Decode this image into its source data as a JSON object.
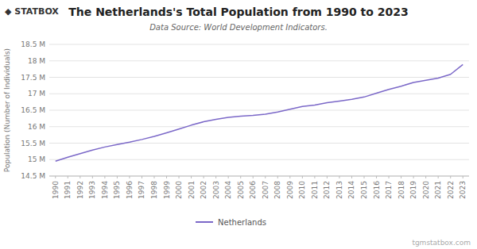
{
  "chart_data": {
    "type": "line",
    "title": "The Netherlands's Total Population from 1990 to 2023",
    "subtitle": "Data Source: World Development Indicators.",
    "ylabel": "Population (Number of Individuals)",
    "annotations": [
      "◆ STATBOX",
      "tgmstatbox.com"
    ],
    "x": [
      1990,
      1991,
      1992,
      1993,
      1994,
      1995,
      1996,
      1997,
      1998,
      1999,
      2000,
      2001,
      2002,
      2003,
      2004,
      2005,
      2006,
      2007,
      2008,
      2009,
      2010,
      2011,
      2012,
      2013,
      2014,
      2015,
      2016,
      2017,
      2018,
      2019,
      2020,
      2021,
      2022,
      2023
    ],
    "series": [
      {
        "name": "Netherlands",
        "color": "#7B68C8",
        "values": [
          14952000,
          15070000,
          15182000,
          15290000,
          15383000,
          15459000,
          15530000,
          15611000,
          15707000,
          15812000,
          15926000,
          16046000,
          16149000,
          16225000,
          16281000,
          16320000,
          16346000,
          16382000,
          16446000,
          16531000,
          16615000,
          16656000,
          16731000,
          16779000,
          16829000,
          16901000,
          17018000,
          17132000,
          17231000,
          17344000,
          17408000,
          17475000,
          17591000,
          17890000
        ]
      }
    ],
    "xlim": [
      1989.5,
      2023.5
    ],
    "xticks": [
      1990,
      1991,
      1992,
      1993,
      1994,
      1995,
      1996,
      1997,
      1998,
      1999,
      2000,
      2001,
      2002,
      2003,
      2004,
      2005,
      2006,
      2007,
      2008,
      2009,
      2010,
      2011,
      2012,
      2013,
      2014,
      2015,
      2016,
      2017,
      2018,
      2019,
      2020,
      2021,
      2022,
      2023
    ],
    "ylim": [
      14500000,
      18500000
    ],
    "yticks": [
      {
        "value": 14500000,
        "label": "14.5 M"
      },
      {
        "value": 15000000,
        "label": "15 M"
      },
      {
        "value": 15500000,
        "label": "15.5 M"
      },
      {
        "value": 16000000,
        "label": "16 M"
      },
      {
        "value": 16500000,
        "label": "16.5 M"
      },
      {
        "value": 17000000,
        "label": "17 M"
      },
      {
        "value": 17500000,
        "label": "17.5 M"
      },
      {
        "value": 18000000,
        "label": "18 M"
      },
      {
        "value": 18500000,
        "label": "18.5 M"
      }
    ],
    "grid": true,
    "legend": "bottom"
  }
}
